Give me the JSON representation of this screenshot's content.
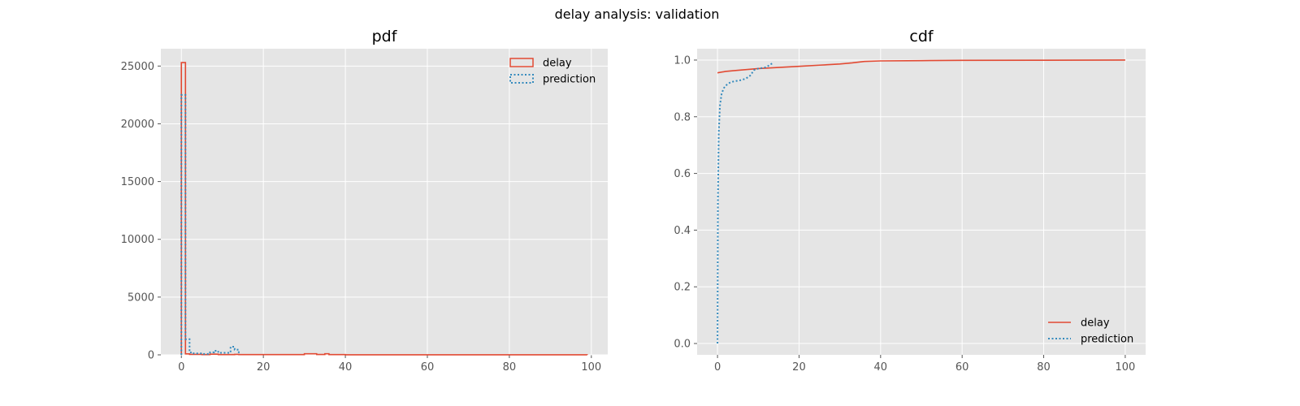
{
  "suptitle": "delay analysis: validation",
  "colors": {
    "delay": "#E24A33",
    "prediction": "#348ABD",
    "panel_bg": "#E5E5E5",
    "grid": "#FFFFFF",
    "tick_text": "#555555"
  },
  "chart_data": [
    {
      "type": "histogram",
      "title": "pdf",
      "xlabel": "",
      "ylabel": "",
      "xlim": [
        -5,
        104
      ],
      "ylim": [
        0,
        26500
      ],
      "xticks": [
        0,
        20,
        40,
        60,
        80,
        100
      ],
      "yticks": [
        0,
        5000,
        10000,
        15000,
        20000,
        25000
      ],
      "grid": true,
      "legend": {
        "position": "top-right",
        "entries": [
          "delay",
          "prediction"
        ]
      },
      "series": [
        {
          "name": "delay",
          "style": "solid-step",
          "points": [
            [
              0,
              0
            ],
            [
              0,
              25300
            ],
            [
              1,
              25300
            ],
            [
              1,
              80
            ],
            [
              2,
              80
            ],
            [
              2,
              40
            ],
            [
              5,
              40
            ],
            [
              5,
              20
            ],
            [
              7,
              20
            ],
            [
              7,
              60
            ],
            [
              9,
              60
            ],
            [
              9,
              20
            ],
            [
              13,
              20
            ],
            [
              13,
              40
            ],
            [
              14,
              40
            ],
            [
              14,
              20
            ],
            [
              30,
              20
            ],
            [
              30,
              90
            ],
            [
              33,
              90
            ],
            [
              33,
              30
            ],
            [
              35,
              30
            ],
            [
              35,
              90
            ],
            [
              36,
              90
            ],
            [
              36,
              20
            ],
            [
              40,
              20
            ],
            [
              40,
              5
            ],
            [
              99,
              5
            ],
            [
              99,
              0
            ]
          ]
        },
        {
          "name": "prediction",
          "style": "dotted-step",
          "points": [
            [
              0,
              0
            ],
            [
              0,
              22500
            ],
            [
              1,
              22500
            ],
            [
              1,
              1350
            ],
            [
              2,
              1350
            ],
            [
              2,
              200
            ],
            [
              3,
              200
            ],
            [
              3,
              120
            ],
            [
              5,
              120
            ],
            [
              5,
              80
            ],
            [
              7,
              80
            ],
            [
              7,
              220
            ],
            [
              8,
              220
            ],
            [
              8,
              350
            ],
            [
              9,
              350
            ],
            [
              9,
              180
            ],
            [
              12,
              180
            ],
            [
              12,
              700
            ],
            [
              13,
              700
            ],
            [
              13,
              450
            ],
            [
              14,
              450
            ],
            [
              14,
              0
            ]
          ]
        }
      ]
    },
    {
      "type": "line",
      "title": "cdf",
      "xlabel": "",
      "ylabel": "",
      "xlim": [
        -5,
        105
      ],
      "ylim": [
        -0.04,
        1.04
      ],
      "xticks": [
        0,
        20,
        40,
        60,
        80,
        100
      ],
      "yticks": [
        0.0,
        0.2,
        0.4,
        0.6,
        0.8,
        1.0
      ],
      "grid": true,
      "legend": {
        "position": "bottom-right",
        "entries": [
          "delay",
          "prediction"
        ]
      },
      "series": [
        {
          "name": "delay",
          "style": "solid",
          "points": [
            [
              0,
              0.955
            ],
            [
              2,
              0.96
            ],
            [
              5,
              0.964
            ],
            [
              10,
              0.97
            ],
            [
              15,
              0.974
            ],
            [
              20,
              0.978
            ],
            [
              25,
              0.982
            ],
            [
              30,
              0.986
            ],
            [
              33,
              0.99
            ],
            [
              36,
              0.995
            ],
            [
              40,
              0.997
            ],
            [
              50,
              0.998
            ],
            [
              60,
              0.999
            ],
            [
              80,
              0.9995
            ],
            [
              100,
              1.0
            ]
          ]
        },
        {
          "name": "prediction",
          "style": "dotted",
          "points": [
            [
              0,
              0.0
            ],
            [
              0.1,
              0.5
            ],
            [
              0.3,
              0.74
            ],
            [
              0.6,
              0.84
            ],
            [
              1,
              0.88
            ],
            [
              1.5,
              0.9
            ],
            [
              2,
              0.91
            ],
            [
              3,
              0.92
            ],
            [
              4,
              0.925
            ],
            [
              5,
              0.927
            ],
            [
              6,
              0.93
            ],
            [
              7,
              0.935
            ],
            [
              8,
              0.945
            ],
            [
              9,
              0.965
            ],
            [
              10,
              0.97
            ],
            [
              11,
              0.972
            ],
            [
              12,
              0.975
            ],
            [
              13,
              0.985
            ],
            [
              13.8,
              0.99
            ]
          ]
        }
      ]
    }
  ]
}
